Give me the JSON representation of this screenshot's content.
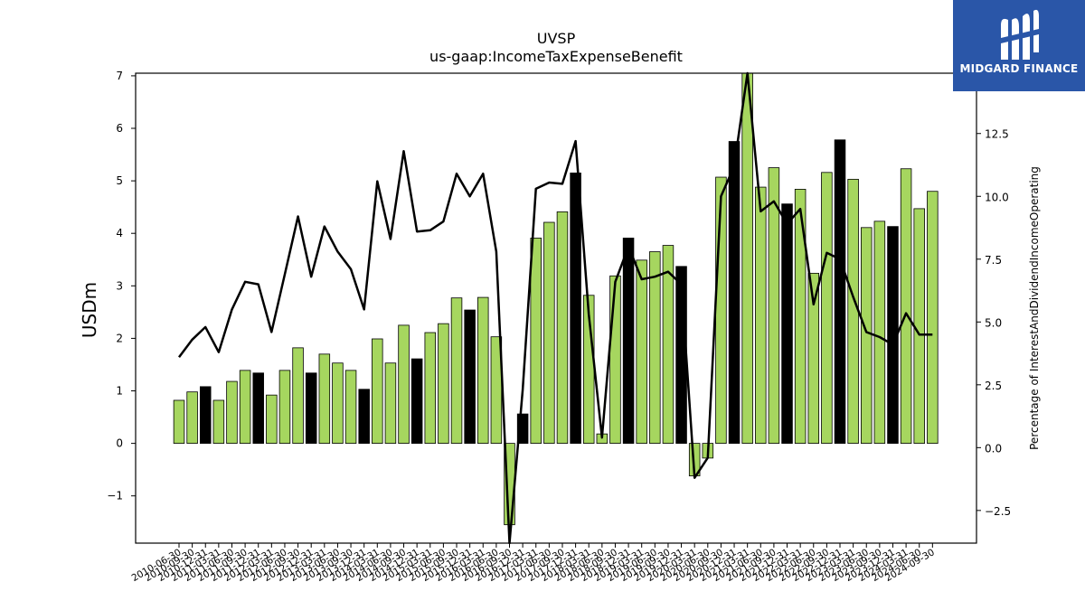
{
  "brand": {
    "name": "MIDGARD FINANCE",
    "logo_icon": "midgard-logo-icon",
    "background": "#2a56a8"
  },
  "chart_data": {
    "type": "bar",
    "title": "UVSP",
    "subtitle": "us-gaap:IncomeTaxExpenseBenefit",
    "ylabel": "USDm",
    "y2label": "Percentage of InterestAndDividendIncomeOperating",
    "ylim": [
      -1.9,
      7.05
    ],
    "y2lim": [
      -3.8,
      14.9
    ],
    "yticks": [
      -1,
      0,
      1,
      2,
      3,
      4,
      5,
      6,
      7
    ],
    "y2ticks": [
      -2.5,
      0.0,
      2.5,
      5.0,
      7.5,
      10.0,
      12.5
    ],
    "colors": {
      "quarter_bar": "#a6d65f",
      "annual_bar": "#000000",
      "line": "#000000"
    },
    "categories": [
      "2010-06-30",
      "2010-09-30",
      "2010-12-31",
      "2011-03-31",
      "2011-06-30",
      "2011-09-30",
      "2011-12-31",
      "2012-03-31",
      "2012-06-30",
      "2012-09-30",
      "2012-12-31",
      "2013-03-31",
      "2013-06-30",
      "2013-09-30",
      "2013-12-31",
      "2014-03-31",
      "2014-06-30",
      "2014-09-30",
      "2014-12-31",
      "2015-03-31",
      "2015-06-30",
      "2015-09-30",
      "2015-12-31",
      "2016-03-31",
      "2016-06-30",
      "2016-09-30",
      "2016-12-31",
      "2017-03-31",
      "2017-06-30",
      "2017-09-30",
      "2017-12-31",
      "2018-03-31",
      "2018-06-30",
      "2018-09-30",
      "2018-12-31",
      "2019-03-31",
      "2019-06-30",
      "2019-09-30",
      "2019-12-31",
      "2020-03-31",
      "2020-06-30",
      "2020-09-30",
      "2020-12-31",
      "2021-03-31",
      "2021-06-30",
      "2021-09-30",
      "2021-12-31",
      "2022-03-31",
      "2022-06-30",
      "2022-09-30",
      "2022-12-31",
      "2023-03-31",
      "2023-06-30",
      "2023-09-30",
      "2023-12-31",
      "2024-03-31",
      "2024-06-30",
      "2024-09-30"
    ],
    "series": [
      {
        "kind": "bar",
        "values": [
          0.82,
          0.98,
          1.08,
          0.82,
          1.18,
          1.39,
          1.34,
          0.92,
          1.39,
          1.82,
          1.34,
          1.7,
          1.53,
          1.39,
          1.03,
          1.99,
          1.53,
          2.25,
          1.61,
          2.11,
          2.28,
          2.77,
          2.54,
          2.78,
          2.03,
          -1.55,
          0.56,
          3.91,
          4.21,
          4.41,
          5.15,
          2.82,
          0.18,
          3.19,
          3.91,
          3.49,
          3.65,
          3.77,
          3.37,
          -0.62,
          -0.28,
          5.07,
          5.75,
          7.15,
          4.88,
          5.25,
          4.56,
          4.84,
          3.24,
          5.16,
          5.78,
          5.03,
          4.11,
          4.23,
          4.13,
          5.23,
          4.47,
          4.8
        ],
        "annual": [
          false,
          false,
          true,
          false,
          false,
          false,
          true,
          false,
          false,
          false,
          true,
          false,
          false,
          false,
          true,
          false,
          false,
          false,
          true,
          false,
          false,
          false,
          true,
          false,
          false,
          false,
          true,
          false,
          false,
          false,
          true,
          false,
          false,
          false,
          true,
          false,
          false,
          false,
          true,
          false,
          false,
          false,
          true,
          false,
          false,
          false,
          true,
          false,
          false,
          false,
          true,
          false,
          false,
          false,
          true,
          false,
          false,
          false
        ]
      },
      {
        "kind": "line",
        "axis": "right",
        "values": [
          3.6,
          4.3,
          4.8,
          3.8,
          5.5,
          6.6,
          6.5,
          4.6,
          6.9,
          9.2,
          6.8,
          8.8,
          7.8,
          7.1,
          5.5,
          10.6,
          8.3,
          11.8,
          8.6,
          8.65,
          9.0,
          10.9,
          10.0,
          10.9,
          7.8,
          -3.8,
          2.3,
          10.3,
          10.55,
          10.5,
          12.2,
          5.3,
          0.4,
          6.6,
          8.0,
          6.7,
          6.8,
          7.0,
          6.5,
          -1.2,
          -0.4,
          10.0,
          11.2,
          15.0,
          9.4,
          9.8,
          8.9,
          9.5,
          5.7,
          7.75,
          7.5,
          6.0,
          4.6,
          4.4,
          4.1,
          5.35,
          4.5,
          4.5
        ]
      }
    ]
  }
}
